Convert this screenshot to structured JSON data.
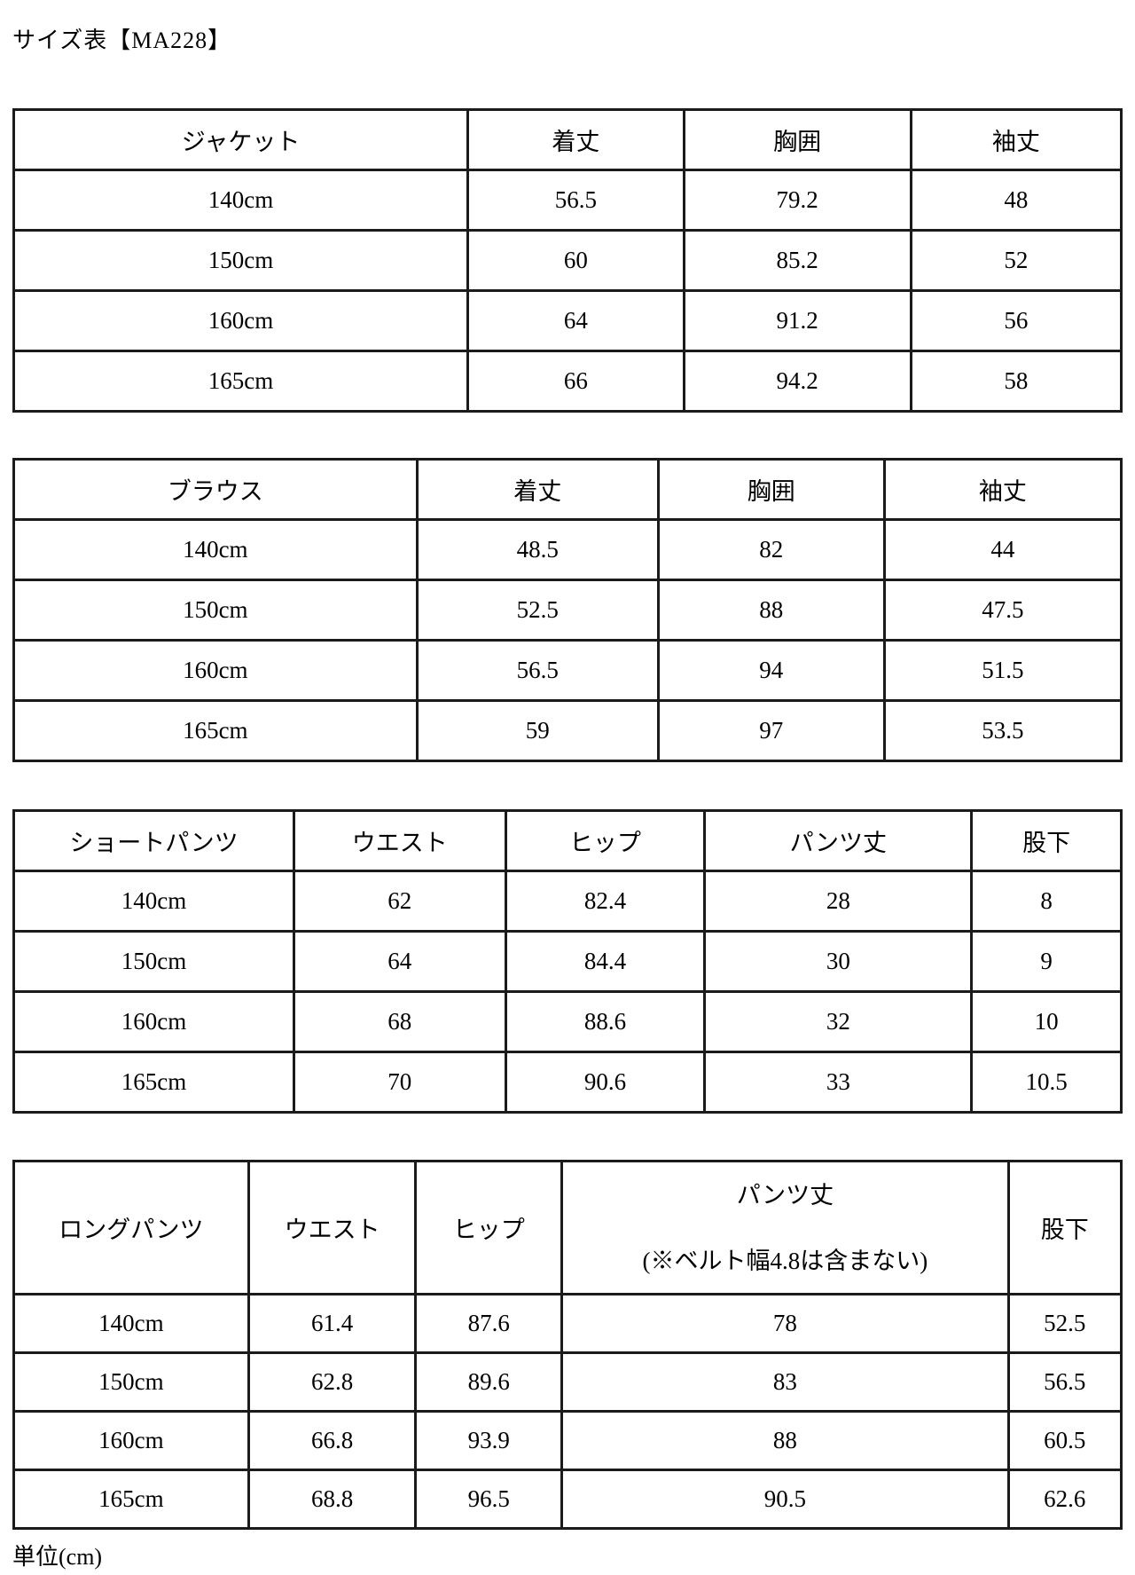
{
  "page": {
    "title": "サイズ表【MA228】",
    "unit_note": "単位(cm)"
  },
  "colors": {
    "background": "#ffffff",
    "text": "#000000",
    "table_border": "#1b1b1b"
  },
  "tables": [
    {
      "name": "ジャケット",
      "headers": [
        "ジャケット",
        "着丈",
        "胸囲",
        "袖丈"
      ],
      "rows": [
        [
          "140cm",
          "56.5",
          "79.2",
          "48"
        ],
        [
          "150cm",
          "60",
          "85.2",
          "52"
        ],
        [
          "160cm",
          "64",
          "91.2",
          "56"
        ],
        [
          "165cm",
          "66",
          "94.2",
          "58"
        ]
      ]
    },
    {
      "name": "ブラウス",
      "headers": [
        "ブラウス",
        "着丈",
        "胸囲",
        "袖丈"
      ],
      "rows": [
        [
          "140cm",
          "48.5",
          "82",
          "44"
        ],
        [
          "150cm",
          "52.5",
          "88",
          "47.5"
        ],
        [
          "160cm",
          "56.5",
          "94",
          "51.5"
        ],
        [
          "165cm",
          "59",
          "97",
          "53.5"
        ]
      ]
    },
    {
      "name": "ショートパンツ",
      "headers": [
        "ショートパンツ",
        "ウエスト",
        "ヒップ",
        "パンツ丈",
        "股下"
      ],
      "rows": [
        [
          "140cm",
          "62",
          "82.4",
          "28",
          "8"
        ],
        [
          "150cm",
          "64",
          "84.4",
          "30",
          "9"
        ],
        [
          "160cm",
          "68",
          "88.6",
          "32",
          "10"
        ],
        [
          "165cm",
          "70",
          "90.6",
          "33",
          "10.5"
        ]
      ]
    },
    {
      "name": "ロングパンツ",
      "headers": [
        "ロングパンツ",
        "ウエスト",
        "ヒップ",
        {
          "line1": "パンツ丈",
          "line2": "(※ベルト幅4.8は含まない)"
        },
        "股下"
      ],
      "rows": [
        [
          "140cm",
          "61.4",
          "87.6",
          "78",
          "52.5"
        ],
        [
          "150cm",
          "62.8",
          "89.6",
          "83",
          "56.5"
        ],
        [
          "160cm",
          "66.8",
          "93.9",
          "88",
          "60.5"
        ],
        [
          "165cm",
          "68.8",
          "96.5",
          "90.5",
          "62.6"
        ]
      ]
    }
  ]
}
